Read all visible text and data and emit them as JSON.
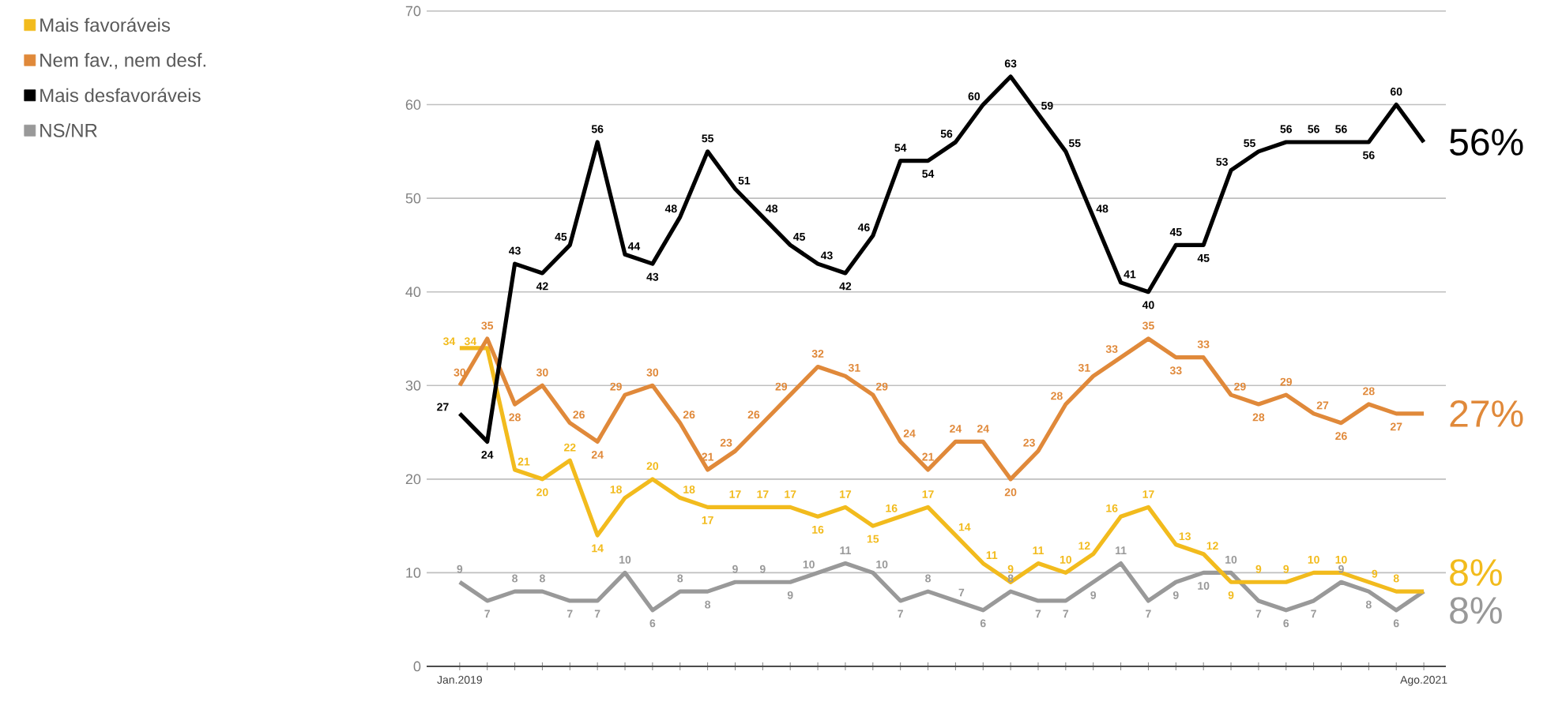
{
  "chart_data": {
    "type": "line",
    "categories": [
      "Jan.2019",
      null,
      null,
      null,
      null,
      null,
      null,
      null,
      null,
      null,
      null,
      null,
      null,
      null,
      null,
      null,
      null,
      null,
      null,
      null,
      null,
      null,
      null,
      null,
      null,
      null,
      null,
      null,
      null,
      null,
      null,
      null,
      null,
      null,
      null,
      "Ago.2021"
    ],
    "series": [
      {
        "name": "Mais desfavoráveis",
        "color": "#000000",
        "values": [
          27,
          24,
          43,
          42,
          45,
          56,
          44,
          43,
          48,
          55,
          51,
          48,
          45,
          43,
          42,
          46,
          54,
          54,
          56,
          60,
          63,
          59,
          55,
          48,
          41,
          40,
          45,
          45,
          53,
          55,
          56,
          56,
          56,
          56,
          60,
          56
        ],
        "value_labels": [
          "27",
          "24",
          "43",
          "42",
          "45",
          "56",
          "44",
          "43",
          "48",
          "55",
          "51",
          "48",
          "45",
          "43",
          "42",
          "46",
          "54",
          "54",
          "56",
          "60",
          "63",
          "59",
          "55",
          "48",
          "41",
          "40",
          "45",
          "45",
          "53",
          "55",
          "56",
          "56",
          "56",
          "56",
          "60",
          null
        ]
      },
      {
        "name": "Nem fav., nem desf.",
        "color": "#e0893a",
        "values": [
          30,
          35,
          28,
          30,
          26,
          24,
          29,
          30,
          26,
          21,
          23,
          26,
          29,
          32,
          31,
          29,
          24,
          21,
          24,
          24,
          20,
          23,
          28,
          31,
          33,
          35,
          33,
          33,
          29,
          28,
          29,
          27,
          26,
          28,
          27,
          27
        ],
        "value_labels": [
          "30",
          "35",
          "28",
          "30",
          "26",
          "24",
          "29",
          "30",
          "26",
          "21",
          "23",
          "26",
          "29",
          "32",
          "31",
          "29",
          "24",
          "21",
          "24",
          "24",
          "20",
          "23",
          "28",
          "31",
          "33",
          "35",
          "33",
          "33",
          "29",
          "28",
          "29",
          "27",
          "26",
          "28",
          "27",
          null
        ]
      },
      {
        "name": "Mais favoráveis",
        "color": "#f2bb1d",
        "values": [
          34,
          34,
          21,
          20,
          22,
          14,
          18,
          20,
          18,
          17,
          17,
          17,
          17,
          16,
          17,
          15,
          16,
          17,
          14,
          11,
          9,
          11,
          10,
          12,
          16,
          17,
          13,
          12,
          9,
          9,
          9,
          10,
          10,
          9,
          8,
          8
        ],
        "value_labels": [
          "34",
          "34",
          "21",
          "20",
          "22",
          "14",
          "18",
          "20",
          "18",
          "17",
          "17",
          "17",
          "17",
          "16",
          "17",
          "15",
          "16",
          "17",
          "14",
          "11",
          "9",
          "11",
          "10",
          "12",
          "16",
          "17",
          "13",
          "12",
          "9",
          "9",
          "9",
          "10",
          "10",
          "9",
          "8",
          null
        ]
      },
      {
        "name": "NS/NR",
        "color": "#999999",
        "values": [
          9,
          7,
          8,
          8,
          7,
          7,
          10,
          6,
          8,
          8,
          9,
          9,
          9,
          10,
          11,
          10,
          7,
          8,
          7,
          6,
          8,
          7,
          7,
          9,
          11,
          7,
          9,
          10,
          10,
          7,
          6,
          7,
          9,
          8,
          6,
          8
        ],
        "value_labels": [
          "9",
          "7",
          "8",
          "8",
          "7",
          "7",
          "10",
          "6",
          "8",
          "8",
          "9",
          "9",
          "9",
          "10",
          "11",
          "10",
          "7",
          "8",
          "7",
          "6",
          "8",
          "7",
          "7",
          "9",
          "11",
          "7",
          "9",
          "10",
          "10",
          "7",
          "6",
          "7",
          "9",
          "8",
          "6",
          null
        ]
      }
    ],
    "ylim": [
      0,
      70
    ],
    "yticks": [
      0,
      10,
      20,
      30,
      40,
      50,
      60,
      70
    ],
    "grid": "y",
    "legend": "top left",
    "marker": "none",
    "line_style": "solid",
    "annotations": [
      "56%",
      "27%",
      "8%",
      "8%"
    ]
  }
}
